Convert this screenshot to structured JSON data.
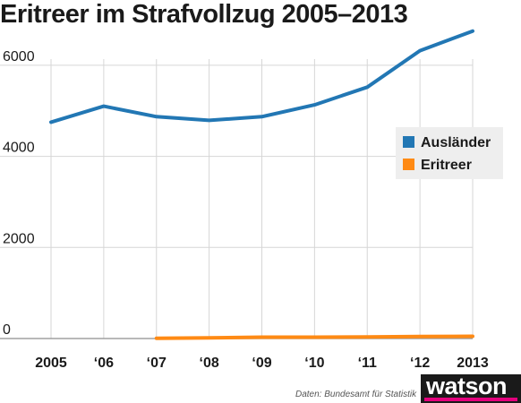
{
  "title": "Eritreer im Strafvollzug 2005–2013",
  "source": "Daten: Bundesamt für Statistik",
  "logo": {
    "text": "watson",
    "accent": "#e5007d",
    "background": "#1a1a1a"
  },
  "chart_data": {
    "type": "line",
    "x": [
      2005,
      2006,
      2007,
      2008,
      2009,
      2010,
      2011,
      2012,
      2013
    ],
    "tick_labels": [
      "2005",
      "‘06",
      "‘07",
      "‘08",
      "‘09",
      "‘10",
      "‘11",
      "‘12",
      "2013"
    ],
    "series": [
      {
        "name": "Ausländer",
        "color": "#2277b4",
        "values": [
          4750,
          5100,
          4870,
          4790,
          4870,
          5130,
          5520,
          6320,
          6750
        ]
      },
      {
        "name": "Eritreer",
        "color": "#ff8a14",
        "values": [
          null,
          null,
          5,
          15,
          30,
          30,
          35,
          45,
          50
        ]
      }
    ],
    "y_ticks": [
      0,
      2000,
      4000,
      6000
    ],
    "ylim": [
      0,
      7000
    ],
    "grid": true,
    "legend_position": "right"
  }
}
